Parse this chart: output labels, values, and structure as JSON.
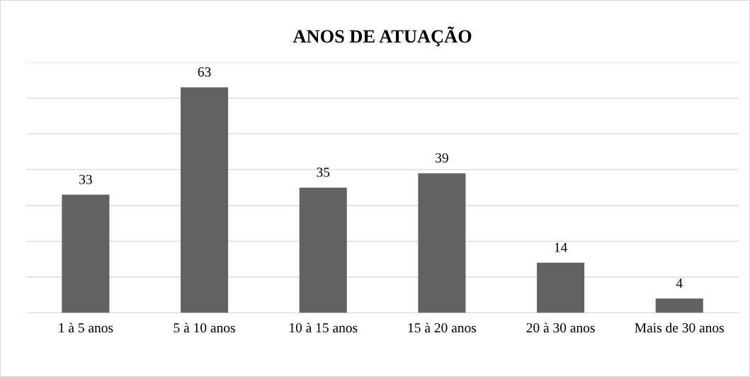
{
  "chart_data": {
    "type": "bar",
    "title": "ANOS DE ATUAÇÃO",
    "categories": [
      "1 à 5 anos",
      "5 à 10 anos",
      "10 à 15 anos",
      "15 à 20 anos",
      "20 à 30 anos",
      "Mais de 30 anos"
    ],
    "values": [
      33,
      63,
      35,
      39,
      14,
      4
    ],
    "color": "#626262",
    "ylim": [
      0,
      70
    ],
    "yticks": [
      {
        "value": 0,
        "label": null
      },
      {
        "value": 10,
        "label": null
      },
      {
        "value": 20,
        "label": null
      },
      {
        "value": 30,
        "label": null
      },
      {
        "value": 40,
        "label": null
      },
      {
        "value": 50,
        "label": null
      },
      {
        "value": 60,
        "label": null
      },
      {
        "value": 70,
        "label": null
      }
    ],
    "tick_labels": "x",
    "grid": "y",
    "data_labels": true,
    "legend": false
  }
}
